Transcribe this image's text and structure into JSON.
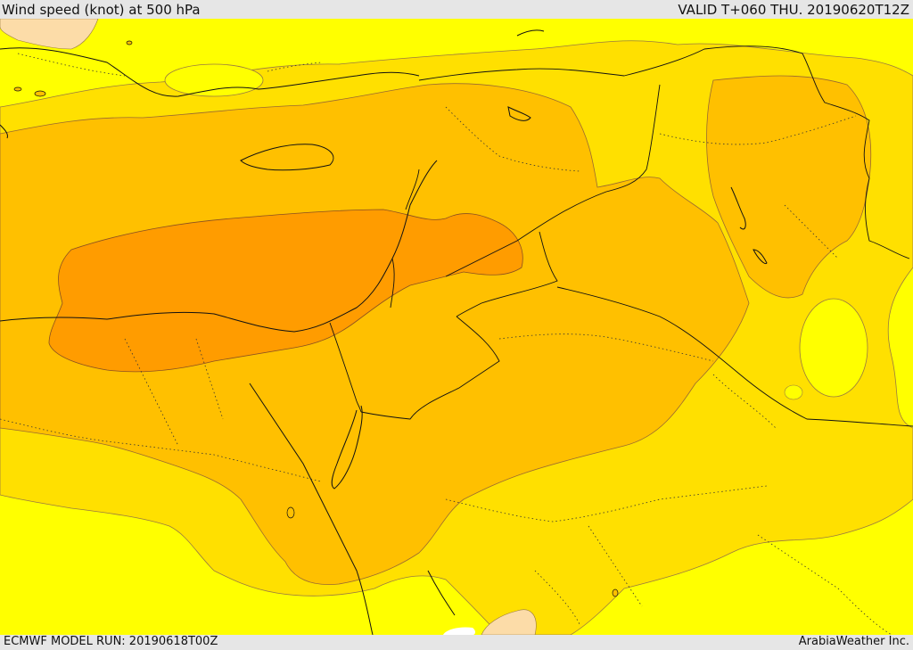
{
  "header": {
    "title": "Wind speed (knot) at 500 hPa",
    "valid": "VALID T+060 THU. 20190620T12Z"
  },
  "footer": {
    "run": "ECMWF MODEL RUN: 20190618T00Z",
    "credit": "ArabiaWeather Inc."
  },
  "colors": {
    "light_peach": "#fcdca8",
    "yellow": "#ffff00",
    "gold": "#ffe000",
    "amber": "#ffc000",
    "orange": "#ff9c00",
    "border": "#000000"
  }
}
